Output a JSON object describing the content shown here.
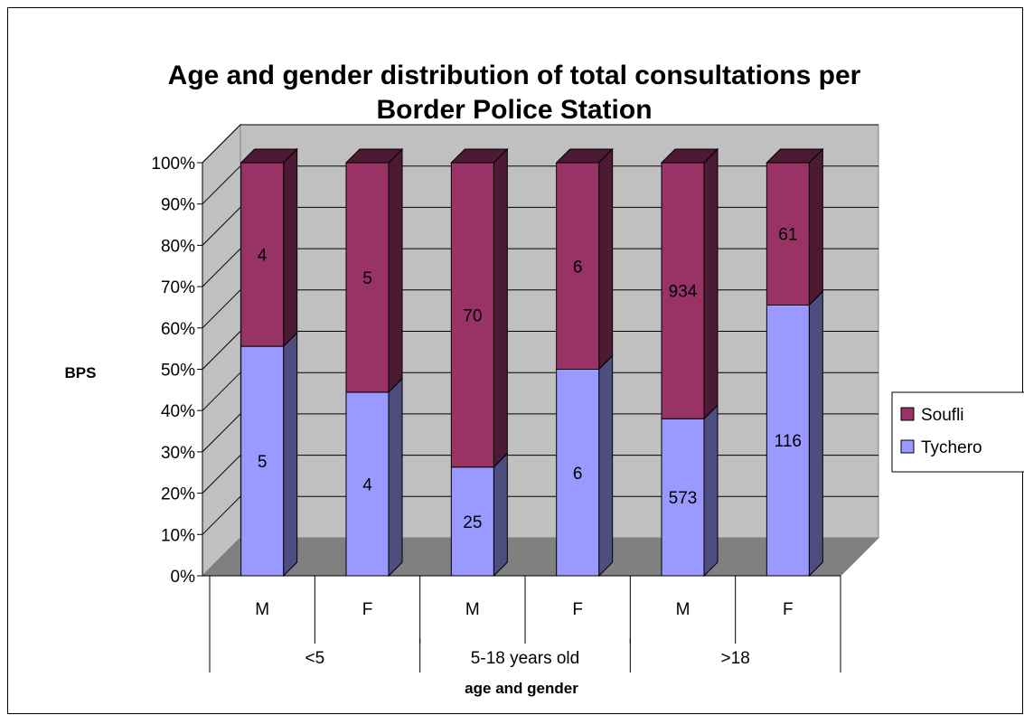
{
  "chart_data": {
    "type": "bar",
    "stacked": "percent",
    "title_lines": [
      "Age and gender distribution of total consultations per",
      "Border Police Station"
    ],
    "ylabel": "BPS",
    "xlabel": "age and gender",
    "ylim": [
      0,
      100
    ],
    "y_ticks": [
      "0%",
      "10%",
      "20%",
      "30%",
      "40%",
      "50%",
      "60%",
      "70%",
      "80%",
      "90%",
      "100%"
    ],
    "categories": [
      "M",
      "F",
      "M",
      "F",
      "M",
      "F"
    ],
    "groups": [
      {
        "label": "<5",
        "span": 2
      },
      {
        "label": "5-18 years old",
        "span": 2
      },
      {
        "label": ">18",
        "span": 2
      }
    ],
    "series": [
      {
        "name": "Tychero",
        "color": "#9999FF",
        "values": [
          5,
          4,
          25,
          6,
          573,
          116
        ]
      },
      {
        "name": "Soufli",
        "color": "#993366",
        "values": [
          4,
          5,
          70,
          6,
          934,
          61
        ]
      }
    ],
    "legend_position": "right",
    "grid": true,
    "wall_color": "#C0C0C0",
    "floor_color": "#808080"
  }
}
